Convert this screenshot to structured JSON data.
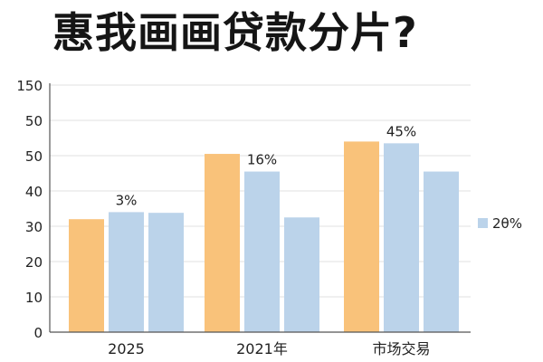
{
  "page": {
    "title": "惠我画画贷款分片?"
  },
  "colors": {
    "orange": "#F9C27A",
    "blue": "#BBD3EA",
    "grid": "#E2E2E2",
    "axis": "#555555",
    "text": "#222222"
  },
  "chart_data": {
    "type": "bar",
    "title": "惠我画画贷款分片?",
    "xlabel": "",
    "ylabel": "",
    "categories": [
      "2025",
      "2021年",
      "市场交易"
    ],
    "y_tick_labels": [
      "0",
      "10",
      "20",
      "30",
      "40",
      "50",
      "50",
      "150"
    ],
    "ylim": [
      0,
      7
    ],
    "grid": true,
    "legend_position": "right",
    "legend": [
      {
        "label": "2θ%",
        "color": "#BBD3EA"
      }
    ],
    "series": [
      {
        "color": "#F9C27A",
        "values": [
          3.2,
          5.05,
          5.4
        ],
        "labels": [
          "",
          "",
          ""
        ]
      },
      {
        "color": "#BBD3EA",
        "values": [
          3.4,
          4.55,
          5.35
        ],
        "labels": [
          "3%",
          "16%",
          "45%"
        ]
      },
      {
        "color": "#BBD3EA",
        "values": [
          3.38,
          3.25,
          4.55
        ],
        "labels": [
          "",
          "",
          ""
        ]
      }
    ]
  }
}
